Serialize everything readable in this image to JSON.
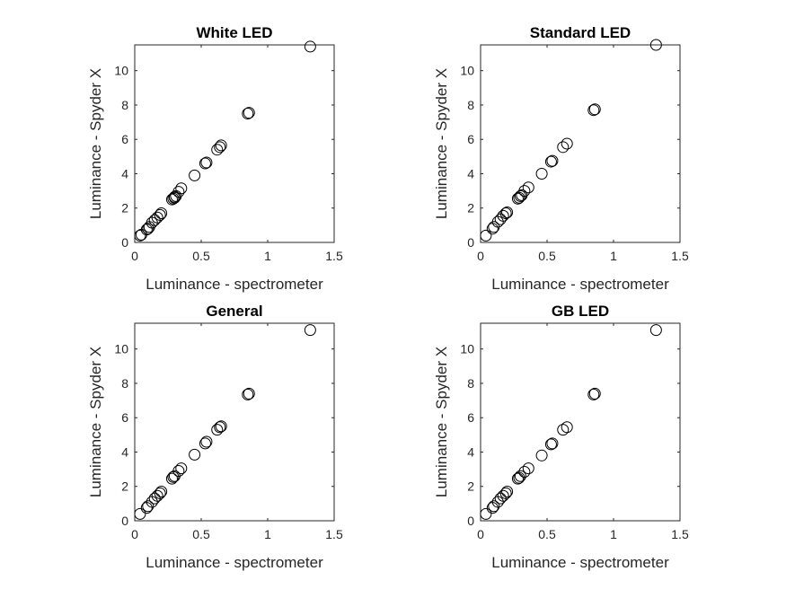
{
  "chart_data": [
    {
      "type": "scatter",
      "title": "White LED",
      "xlabel": "Luminance - spectrometer",
      "ylabel": "Luminance - Spyder X",
      "xlim": [
        0,
        1.5
      ],
      "ylim": [
        0,
        11.5
      ],
      "xticks": [
        0,
        0.5,
        1,
        1.5
      ],
      "yticks": [
        0,
        2,
        4,
        6,
        8,
        10
      ],
      "xtick_labels": [
        "0",
        "0.5",
        "1",
        "1.5"
      ],
      "ytick_labels": [
        "0",
        "2",
        "4",
        "6",
        "8",
        "10"
      ],
      "grid": false,
      "marker": "open-circle",
      "x": [
        0.04,
        0.05,
        0.09,
        0.1,
        0.11,
        0.13,
        0.15,
        0.17,
        0.19,
        0.2,
        0.28,
        0.29,
        0.3,
        0.3,
        0.31,
        0.33,
        0.35,
        0.45,
        0.53,
        0.54,
        0.62,
        0.64,
        0.65,
        0.85,
        0.86,
        1.32
      ],
      "y": [
        0.4,
        0.45,
        0.75,
        0.8,
        0.9,
        1.15,
        1.3,
        1.45,
        1.6,
        1.7,
        2.5,
        2.55,
        2.6,
        2.65,
        2.7,
        2.95,
        3.15,
        3.9,
        4.6,
        4.65,
        5.4,
        5.55,
        5.65,
        7.5,
        7.55,
        11.4
      ]
    },
    {
      "type": "scatter",
      "title": "Standard LED",
      "xlabel": "Luminance - spectrometer",
      "ylabel": "Luminance - Spyder X",
      "xlim": [
        0,
        1.5
      ],
      "ylim": [
        0,
        11.5
      ],
      "xticks": [
        0,
        0.5,
        1,
        1.5
      ],
      "yticks": [
        0,
        2,
        4,
        6,
        8,
        10
      ],
      "xtick_labels": [
        "0",
        "0.5",
        "1",
        "1.5"
      ],
      "ytick_labels": [
        "0",
        "2",
        "4",
        "6",
        "8",
        "10"
      ],
      "grid": false,
      "marker": "open-circle",
      "x": [
        0.04,
        0.09,
        0.1,
        0.13,
        0.15,
        0.17,
        0.19,
        0.2,
        0.28,
        0.29,
        0.3,
        0.31,
        0.33,
        0.36,
        0.46,
        0.53,
        0.54,
        0.62,
        0.65,
        0.85,
        0.86,
        1.32
      ],
      "y": [
        0.4,
        0.8,
        0.9,
        1.2,
        1.35,
        1.55,
        1.7,
        1.75,
        2.55,
        2.6,
        2.7,
        2.75,
        3.0,
        3.2,
        4.0,
        4.7,
        4.75,
        5.55,
        5.75,
        7.7,
        7.75,
        11.5
      ]
    },
    {
      "type": "scatter",
      "title": "General",
      "xlabel": "Luminance - spectrometer",
      "ylabel": "Luminance - Spyder X",
      "xlim": [
        0,
        1.5
      ],
      "ylim": [
        0,
        11.5
      ],
      "xticks": [
        0,
        0.5,
        1,
        1.5
      ],
      "yticks": [
        0,
        2,
        4,
        6,
        8,
        10
      ],
      "xtick_labels": [
        "0",
        "0.5",
        "1",
        "1.5"
      ],
      "ytick_labels": [
        "0",
        "2",
        "4",
        "6",
        "8",
        "10"
      ],
      "grid": false,
      "marker": "open-circle",
      "x": [
        0.04,
        0.09,
        0.1,
        0.13,
        0.15,
        0.17,
        0.19,
        0.2,
        0.28,
        0.29,
        0.3,
        0.33,
        0.35,
        0.45,
        0.53,
        0.54,
        0.62,
        0.64,
        0.65,
        0.85,
        0.86,
        1.32
      ],
      "y": [
        0.4,
        0.75,
        0.85,
        1.1,
        1.3,
        1.45,
        1.6,
        1.7,
        2.45,
        2.55,
        2.6,
        2.9,
        3.05,
        3.85,
        4.5,
        4.6,
        5.3,
        5.45,
        5.5,
        7.35,
        7.4,
        11.1
      ]
    },
    {
      "type": "scatter",
      "title": "GB LED",
      "xlabel": "Luminance - spectrometer",
      "ylabel": "Luminance - Spyder X",
      "xlim": [
        0,
        1.5
      ],
      "ylim": [
        0,
        11.5
      ],
      "xticks": [
        0,
        0.5,
        1,
        1.5
      ],
      "yticks": [
        0,
        2,
        4,
        6,
        8,
        10
      ],
      "xtick_labels": [
        "0",
        "0.5",
        "1",
        "1.5"
      ],
      "ytick_labels": [
        "0",
        "2",
        "4",
        "6",
        "8",
        "10"
      ],
      "grid": false,
      "marker": "open-circle",
      "x": [
        0.04,
        0.09,
        0.1,
        0.13,
        0.15,
        0.17,
        0.19,
        0.2,
        0.28,
        0.29,
        0.3,
        0.33,
        0.36,
        0.46,
        0.53,
        0.54,
        0.62,
        0.65,
        0.85,
        0.86,
        1.32
      ],
      "y": [
        0.4,
        0.75,
        0.85,
        1.1,
        1.3,
        1.45,
        1.6,
        1.7,
        2.45,
        2.5,
        2.6,
        2.85,
        3.05,
        3.8,
        4.45,
        4.5,
        5.3,
        5.45,
        7.35,
        7.4,
        11.1
      ]
    }
  ]
}
